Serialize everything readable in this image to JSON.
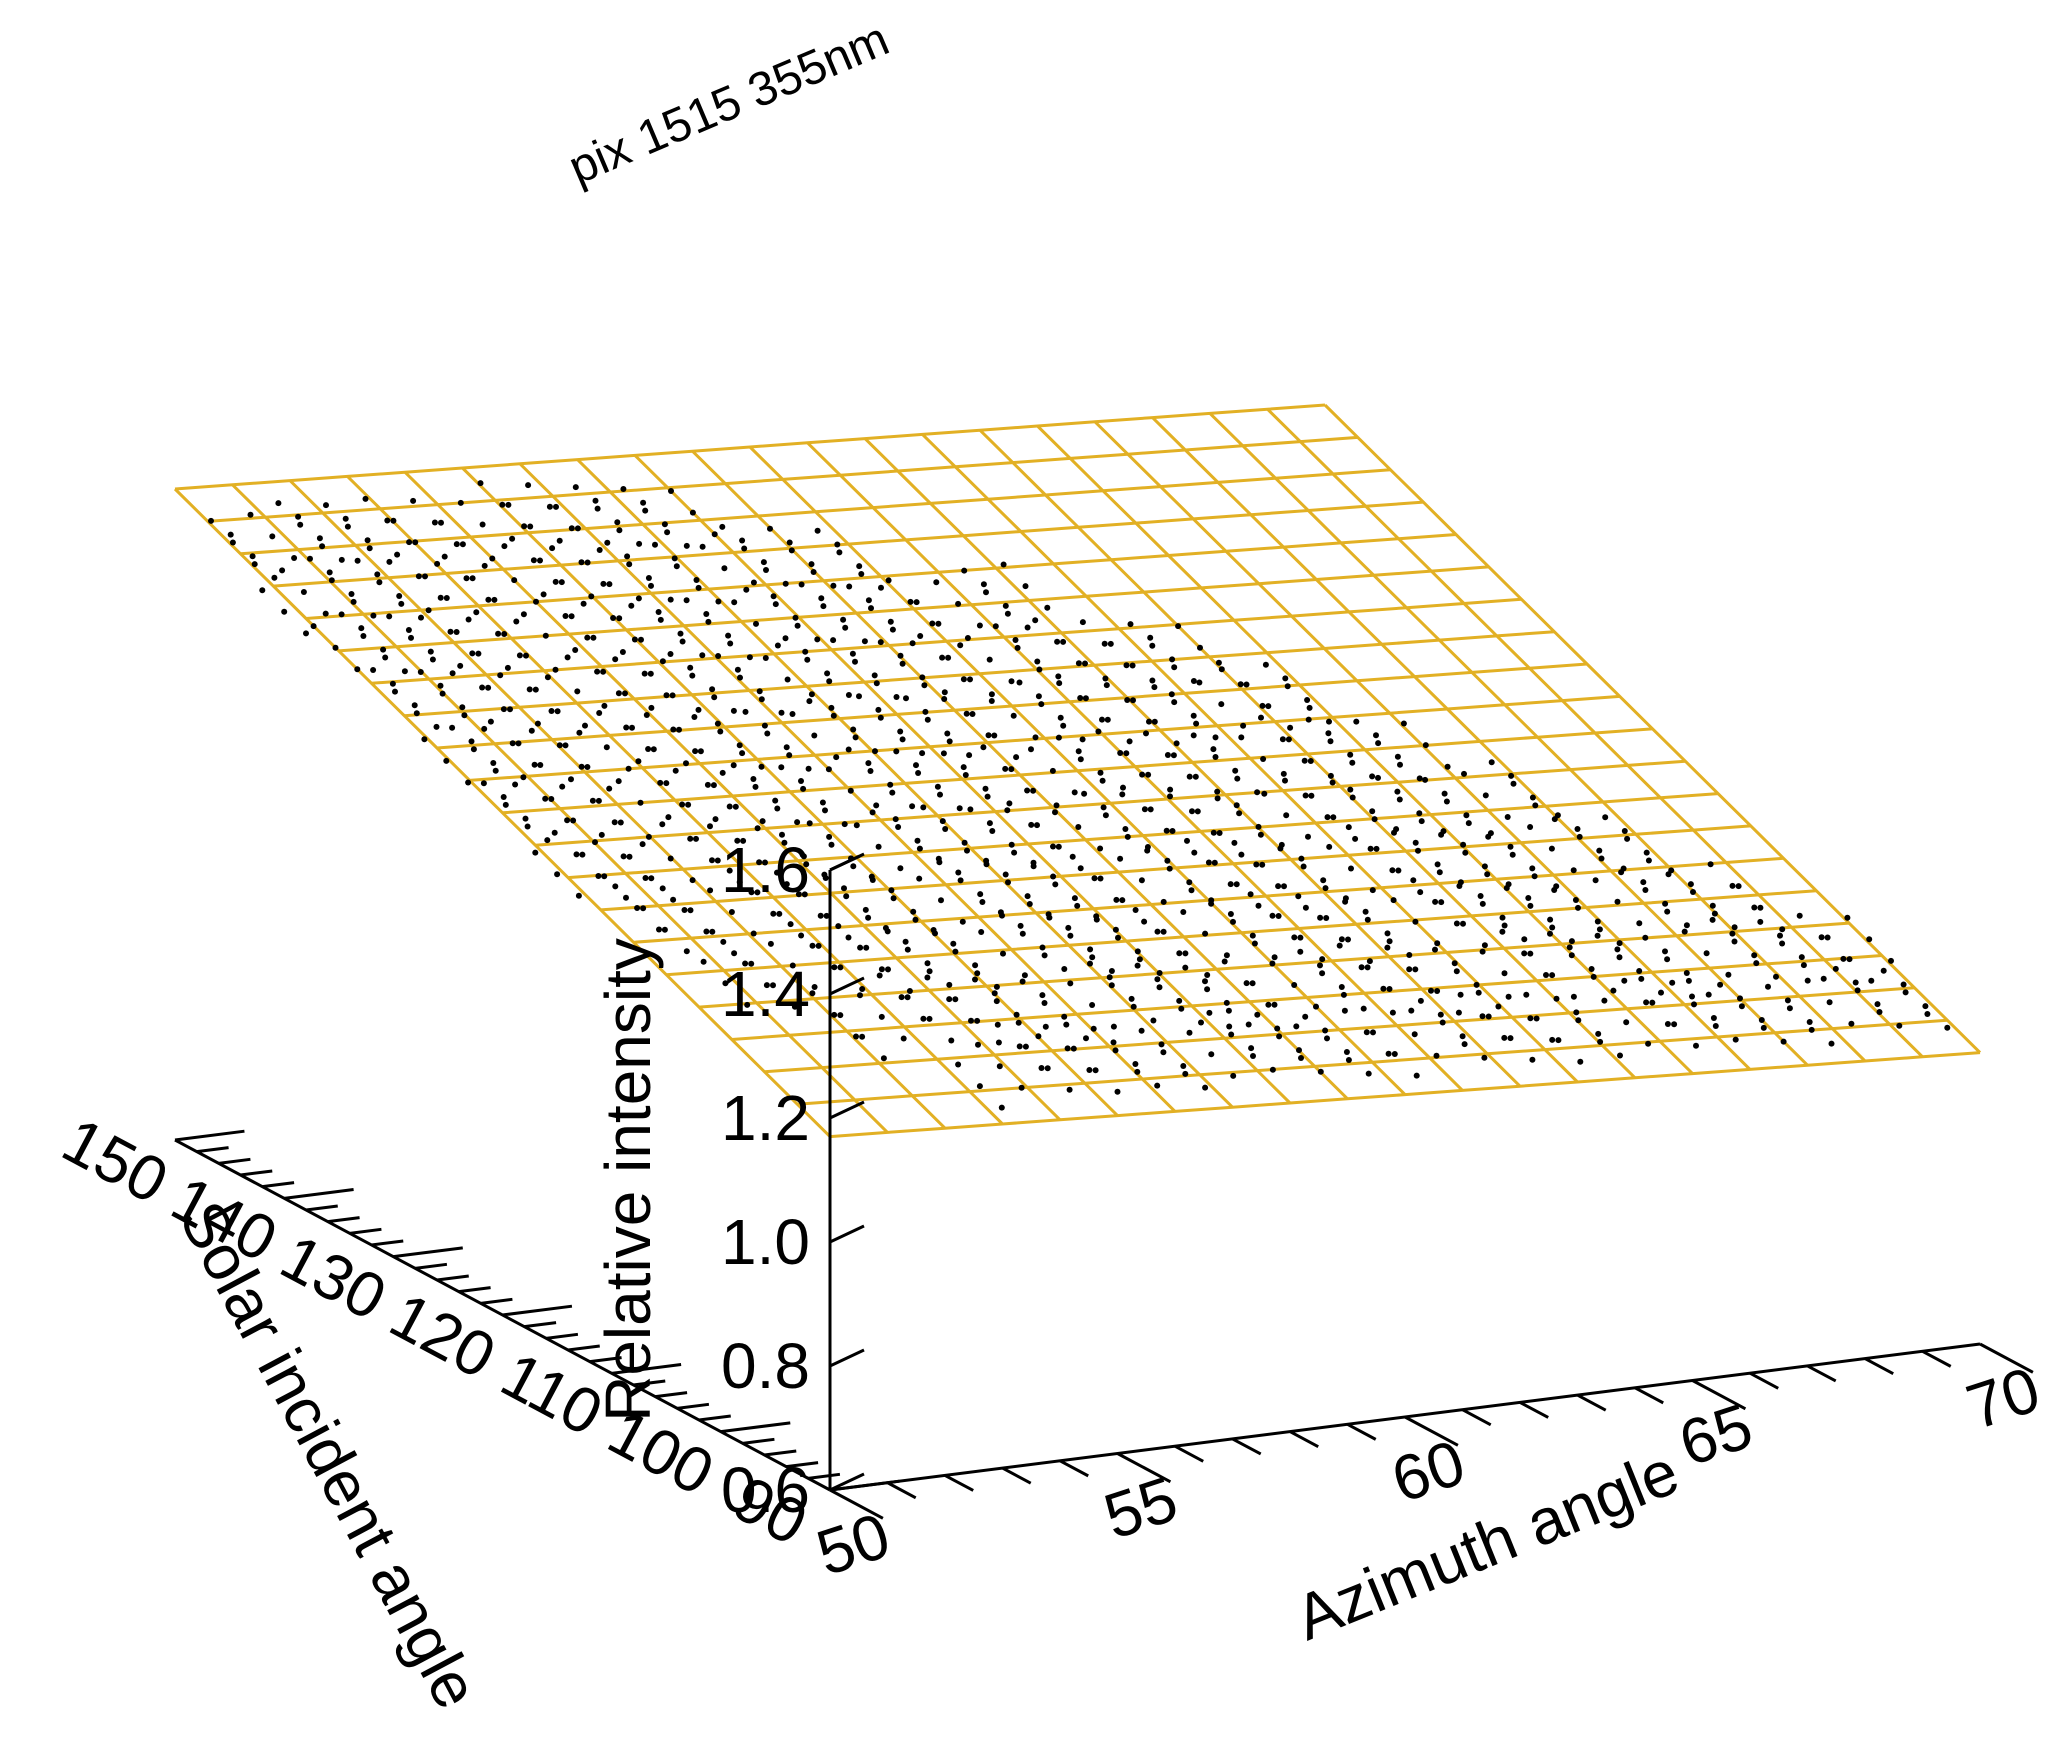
{
  "chart_data": {
    "type": "surface",
    "title": "pix 1515 355nm",
    "x_axis": {
      "label": "Azimuth angle",
      "range": [
        50,
        70
      ],
      "ticks": [
        50,
        55,
        60,
        65,
        70
      ],
      "tick_labels": [
        "50",
        "55",
        "60",
        "65",
        "70"
      ]
    },
    "y_axis": {
      "label": "Solar incident angle",
      "range": [
        90,
        150
      ],
      "ticks": [
        90,
        100,
        110,
        120,
        130,
        140,
        150
      ],
      "tick_labels": [
        "90",
        "100",
        "110",
        "120",
        "130",
        "140",
        "150"
      ]
    },
    "z_axis": {
      "label": "Relative intensity",
      "range": [
        0.6,
        1.6
      ],
      "ticks": [
        0.6,
        0.8,
        1.0,
        1.2,
        1.4,
        1.6
      ],
      "tick_labels": [
        "0.6",
        "0.8",
        "1.0",
        "1.2",
        "1.4",
        "1.6"
      ]
    },
    "surface_fit": {
      "color": "#E2B024",
      "grid_cells_x": 20,
      "grid_cells_y": 20,
      "corner_values": {
        "x50_y90": 1.17,
        "x70_y90": 1.07,
        "x50_y150": 1.65,
        "x70_y150": 1.55
      }
    },
    "scatter": {
      "color": "#000000",
      "marker": "dot",
      "description_rows": [
        {
          "x_start": 53.5,
          "x_end": 70,
          "y": 95,
          "z": 1.12
        },
        {
          "x_start": 52,
          "x_end": 70,
          "y": 100,
          "z": 1.16
        },
        {
          "x_start": 51,
          "x_end": 69,
          "y": 105,
          "z": 1.21
        },
        {
          "x_start": 50.5,
          "x_end": 68,
          "y": 110,
          "z": 1.25
        },
        {
          "x_start": 50,
          "x_end": 67,
          "y": 115,
          "z": 1.29
        },
        {
          "x_start": 50,
          "x_end": 66,
          "y": 120,
          "z": 1.33
        },
        {
          "x_start": 50,
          "x_end": 65,
          "y": 125,
          "z": 1.37
        },
        {
          "x_start": 50,
          "x_end": 64,
          "y": 130,
          "z": 1.41
        },
        {
          "x_start": 50,
          "x_end": 62,
          "y": 135,
          "z": 1.46
        },
        {
          "x_start": 50,
          "x_end": 60,
          "y": 140,
          "z": 1.5
        },
        {
          "x_start": 50,
          "x_end": 58,
          "y": 145,
          "z": 1.54
        }
      ]
    }
  }
}
